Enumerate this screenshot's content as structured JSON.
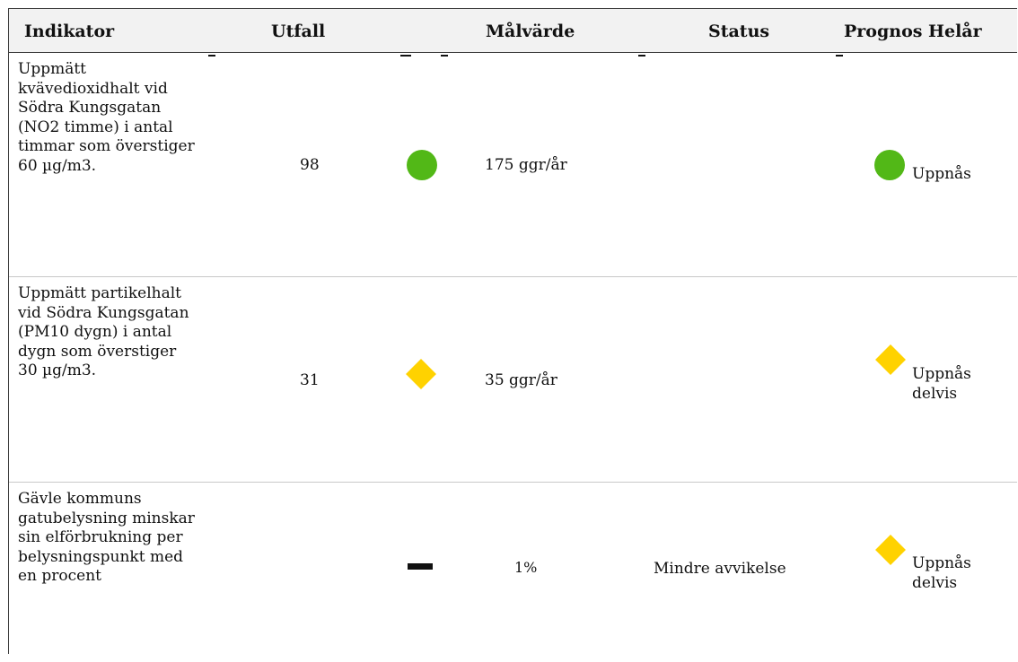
{
  "header": {
    "indikator": "Indikator",
    "utfall": "Utfall",
    "malvarde": "Målvärde",
    "status": "Status",
    "prognos": "Prognos Helår"
  },
  "colors": {
    "green": "#52b817",
    "yellow": "#ffd200",
    "black": "#111111"
  },
  "rows": [
    {
      "indicator": "Uppmätt kvävedioxidhalt vid Södra Kungsgatan (NO2 timme) i antal timmar som överstiger 60 µg/m3.",
      "utfall": "98",
      "status_icon": "green-circle",
      "malvarde": "175 ggr/år",
      "status_text": "",
      "prognos_icon": "green-circle",
      "prognos_text": "Uppnås"
    },
    {
      "indicator": "Uppmätt partikelhalt vid Södra Kungsgatan (PM10 dygn) i antal dygn som överstiger 30 µg/m3.",
      "utfall": "31",
      "status_icon": "yellow-diamond",
      "malvarde": "35 ggr/år",
      "status_text": "",
      "prognos_icon": "yellow-diamond",
      "prognos_text": "Uppnås delvis"
    },
    {
      "indicator": "Gävle kommuns gatubelysning minskar sin elförbrukning per belysningspunkt med en procent",
      "utfall": "",
      "status_icon": "black-dash",
      "malvarde": "1%",
      "status_text": "Mindre avvikelse",
      "prognos_icon": "yellow-diamond",
      "prognos_text": "Uppnås delvis"
    }
  ]
}
